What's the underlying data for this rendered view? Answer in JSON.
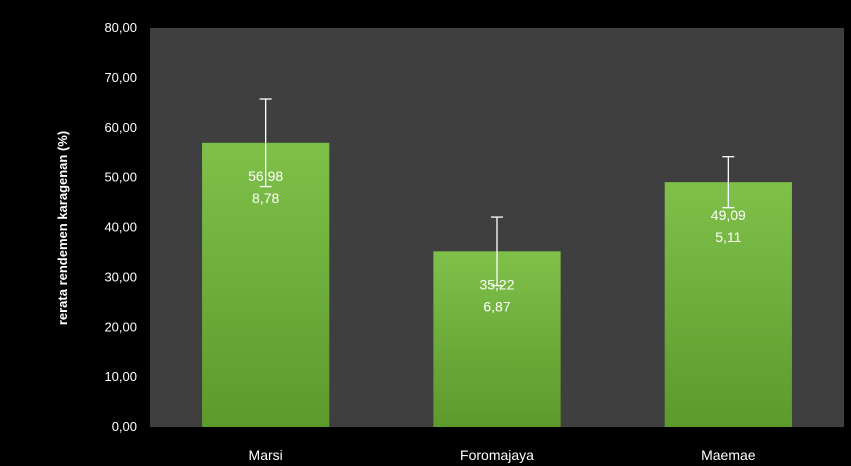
{
  "chart_data": {
    "type": "bar",
    "ylabel": "rerata rendemen karagenan (%)",
    "ylim": [
      0,
      80
    ],
    "yticks": [
      "0,00",
      "10,00",
      "20,00",
      "30,00",
      "40,00",
      "50,00",
      "60,00",
      "70,00",
      "80,00"
    ],
    "categories": [
      "Marsi",
      "Foromajaya",
      "Maemae"
    ],
    "values": [
      56.98,
      35.22,
      49.09
    ],
    "errors": [
      8.78,
      6.87,
      5.11
    ],
    "value_labels": [
      "56,98",
      "35,22",
      "49,09"
    ],
    "error_labels": [
      "8,78",
      "6,87",
      "5,11"
    ],
    "grid": false,
    "legend": "none"
  },
  "colors": {
    "page_background": "#000000",
    "plot_background": "#3f3f3f",
    "bar_top": "#7fc04a",
    "bar_bottom": "#5c9a2c",
    "error_bar": "#ffffff",
    "text": "#ffffff"
  }
}
